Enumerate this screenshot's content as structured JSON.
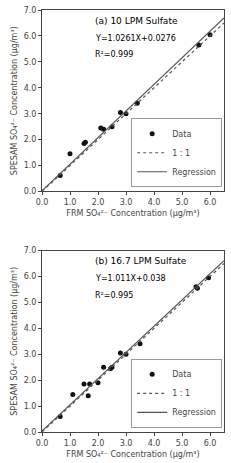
{
  "chart_data": [
    {
      "type": "scatter",
      "title": "(a) 10 LPM Sulfate",
      "annotations": [
        "Y=1.0261X+0.0276",
        "R²=0.999"
      ],
      "xlabel": "FRM SO₄²⁻ Concentration (μg/m³)",
      "ylabel": "SPESAM SO₄²⁻ Concentration (μg/m³)",
      "series": [
        {
          "name": "Data",
          "type": "scatter",
          "marker": "circle",
          "color": "#111111",
          "x": [
            0.65,
            1.0,
            1.5,
            1.55,
            2.1,
            2.2,
            2.5,
            2.8,
            3.0,
            3.4,
            5.6,
            6.0
          ],
          "values": [
            0.62,
            1.45,
            1.85,
            1.9,
            2.45,
            2.4,
            2.5,
            3.05,
            3.0,
            3.4,
            5.65,
            6.05
          ]
        },
        {
          "name": "1 : 1",
          "type": "line",
          "line_style": "dotted",
          "color": "#555555",
          "x": [
            0.0,
            6.5
          ],
          "values": [
            0.0,
            6.5
          ]
        },
        {
          "name": "Regression",
          "type": "line",
          "line_style": "solid",
          "color": "#555555",
          "x": [
            0.0,
            6.5
          ],
          "values": [
            0.0276,
            6.69725
          ]
        }
      ],
      "xlim": [
        0.0,
        6.5
      ],
      "ylim": [
        0.0,
        7.0
      ],
      "xticks": [
        {
          "value": 0,
          "label": "0.0"
        },
        {
          "value": 1,
          "label": "1.0"
        },
        {
          "value": 2,
          "label": "2.0"
        },
        {
          "value": 3,
          "label": "3.0"
        },
        {
          "value": 4,
          "label": "4.0"
        },
        {
          "value": 5,
          "label": "5.0"
        },
        {
          "value": 6,
          "label": "6.0"
        }
      ],
      "yticks": [
        {
          "value": 0,
          "label": "0.0"
        },
        {
          "value": 1,
          "label": "1.0"
        },
        {
          "value": 2,
          "label": "2.0"
        },
        {
          "value": 3,
          "label": "3.0"
        },
        {
          "value": 4,
          "label": "4.0"
        },
        {
          "value": 5,
          "label": "5.0"
        },
        {
          "value": 6,
          "label": "6.0"
        },
        {
          "value": 7,
          "label": "7.0"
        }
      ],
      "grid": false,
      "legend": "lower right"
    },
    {
      "type": "scatter",
      "title": "(b) 16.7 LPM Sulfate",
      "annotations": [
        "Y=1.011X+0.038",
        "R²=0.995"
      ],
      "xlabel": "FRM SO₄²⁻ Concentration (μg/m³)",
      "ylabel": "SPESAM SO₄²⁻ Concentration (μg/m³)",
      "series": [
        {
          "name": "Data",
          "type": "scatter",
          "marker": "circle",
          "color": "#111111",
          "x": [
            0.65,
            1.1,
            1.5,
            1.65,
            1.7,
            2.0,
            2.2,
            2.45,
            2.5,
            2.8,
            3.0,
            3.5,
            5.5,
            5.55,
            5.95
          ],
          "values": [
            0.6,
            1.45,
            1.85,
            1.4,
            1.85,
            1.9,
            2.5,
            2.45,
            2.5,
            3.05,
            3.0,
            3.4,
            5.6,
            5.55,
            5.95
          ]
        },
        {
          "name": "1 : 1",
          "type": "line",
          "line_style": "dotted",
          "color": "#555555",
          "x": [
            0.0,
            6.5
          ],
          "values": [
            0.0,
            6.5
          ]
        },
        {
          "name": "Regression",
          "type": "line",
          "line_style": "solid",
          "color": "#555555",
          "x": [
            0.0,
            6.5
          ],
          "values": [
            0.038,
            6.6095
          ]
        }
      ],
      "xlim": [
        0.0,
        6.5
      ],
      "ylim": [
        0.0,
        7.0
      ],
      "xticks": [
        {
          "value": 0,
          "label": "0.0"
        },
        {
          "value": 1,
          "label": "1.0"
        },
        {
          "value": 2,
          "label": "2.0"
        },
        {
          "value": 3,
          "label": "3.0"
        },
        {
          "value": 4,
          "label": "4.0"
        },
        {
          "value": 5,
          "label": "5.0"
        },
        {
          "value": 6,
          "label": "6.0"
        }
      ],
      "yticks": [
        {
          "value": 0,
          "label": "0.0"
        },
        {
          "value": 1,
          "label": "1.0"
        },
        {
          "value": 2,
          "label": "2.0"
        },
        {
          "value": 3,
          "label": "3.0"
        },
        {
          "value": 4,
          "label": "4.0"
        },
        {
          "value": 5,
          "label": "5.0"
        },
        {
          "value": 6,
          "label": "6.0"
        },
        {
          "value": 7,
          "label": "7.0"
        }
      ],
      "grid": false,
      "legend": "lower right"
    }
  ]
}
